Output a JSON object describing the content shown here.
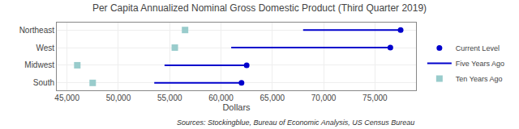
{
  "chart_data": {
    "type": "dot",
    "orientation": "horizontal",
    "title": "Per Capita Annualized Nominal Gross Domestic Product (Third Quarter 2019)",
    "categories": [
      "Northeast",
      "West",
      "Midwest",
      "South"
    ],
    "series": [
      {
        "name": "Current Level",
        "type": "scatter",
        "marker": "circle",
        "color": "#0000CC",
        "values": [
          77500,
          76500,
          62500,
          62000
        ]
      },
      {
        "name": "Five Years Ago",
        "type": "line",
        "line_style": "solid",
        "color": "#0000CC",
        "values": [
          68000,
          61000,
          54500,
          53500
        ]
      },
      {
        "name": "Ten Years Ago",
        "type": "scatter",
        "marker": "square",
        "color": "#99CCCC",
        "values": [
          56500,
          55500,
          46000,
          47500
        ]
      }
    ],
    "xlabel": "Dollars",
    "xlim": [
      44000,
      79000
    ],
    "xticks": [
      {
        "value": 45000,
        "label": "45,000"
      },
      {
        "value": 50000,
        "label": "50,000"
      },
      {
        "value": 55000,
        "label": "55,000"
      },
      {
        "value": 60000,
        "label": "60,000"
      },
      {
        "value": 65000,
        "label": "65,000"
      },
      {
        "value": 70000,
        "label": "70,000"
      },
      {
        "value": 75000,
        "label": "75,000"
      }
    ],
    "grid": true,
    "legend": "lower right",
    "annotations": [
      "Sources: Stockingblue, Bureau of Economic Analysis, US Census Bureau"
    ]
  }
}
